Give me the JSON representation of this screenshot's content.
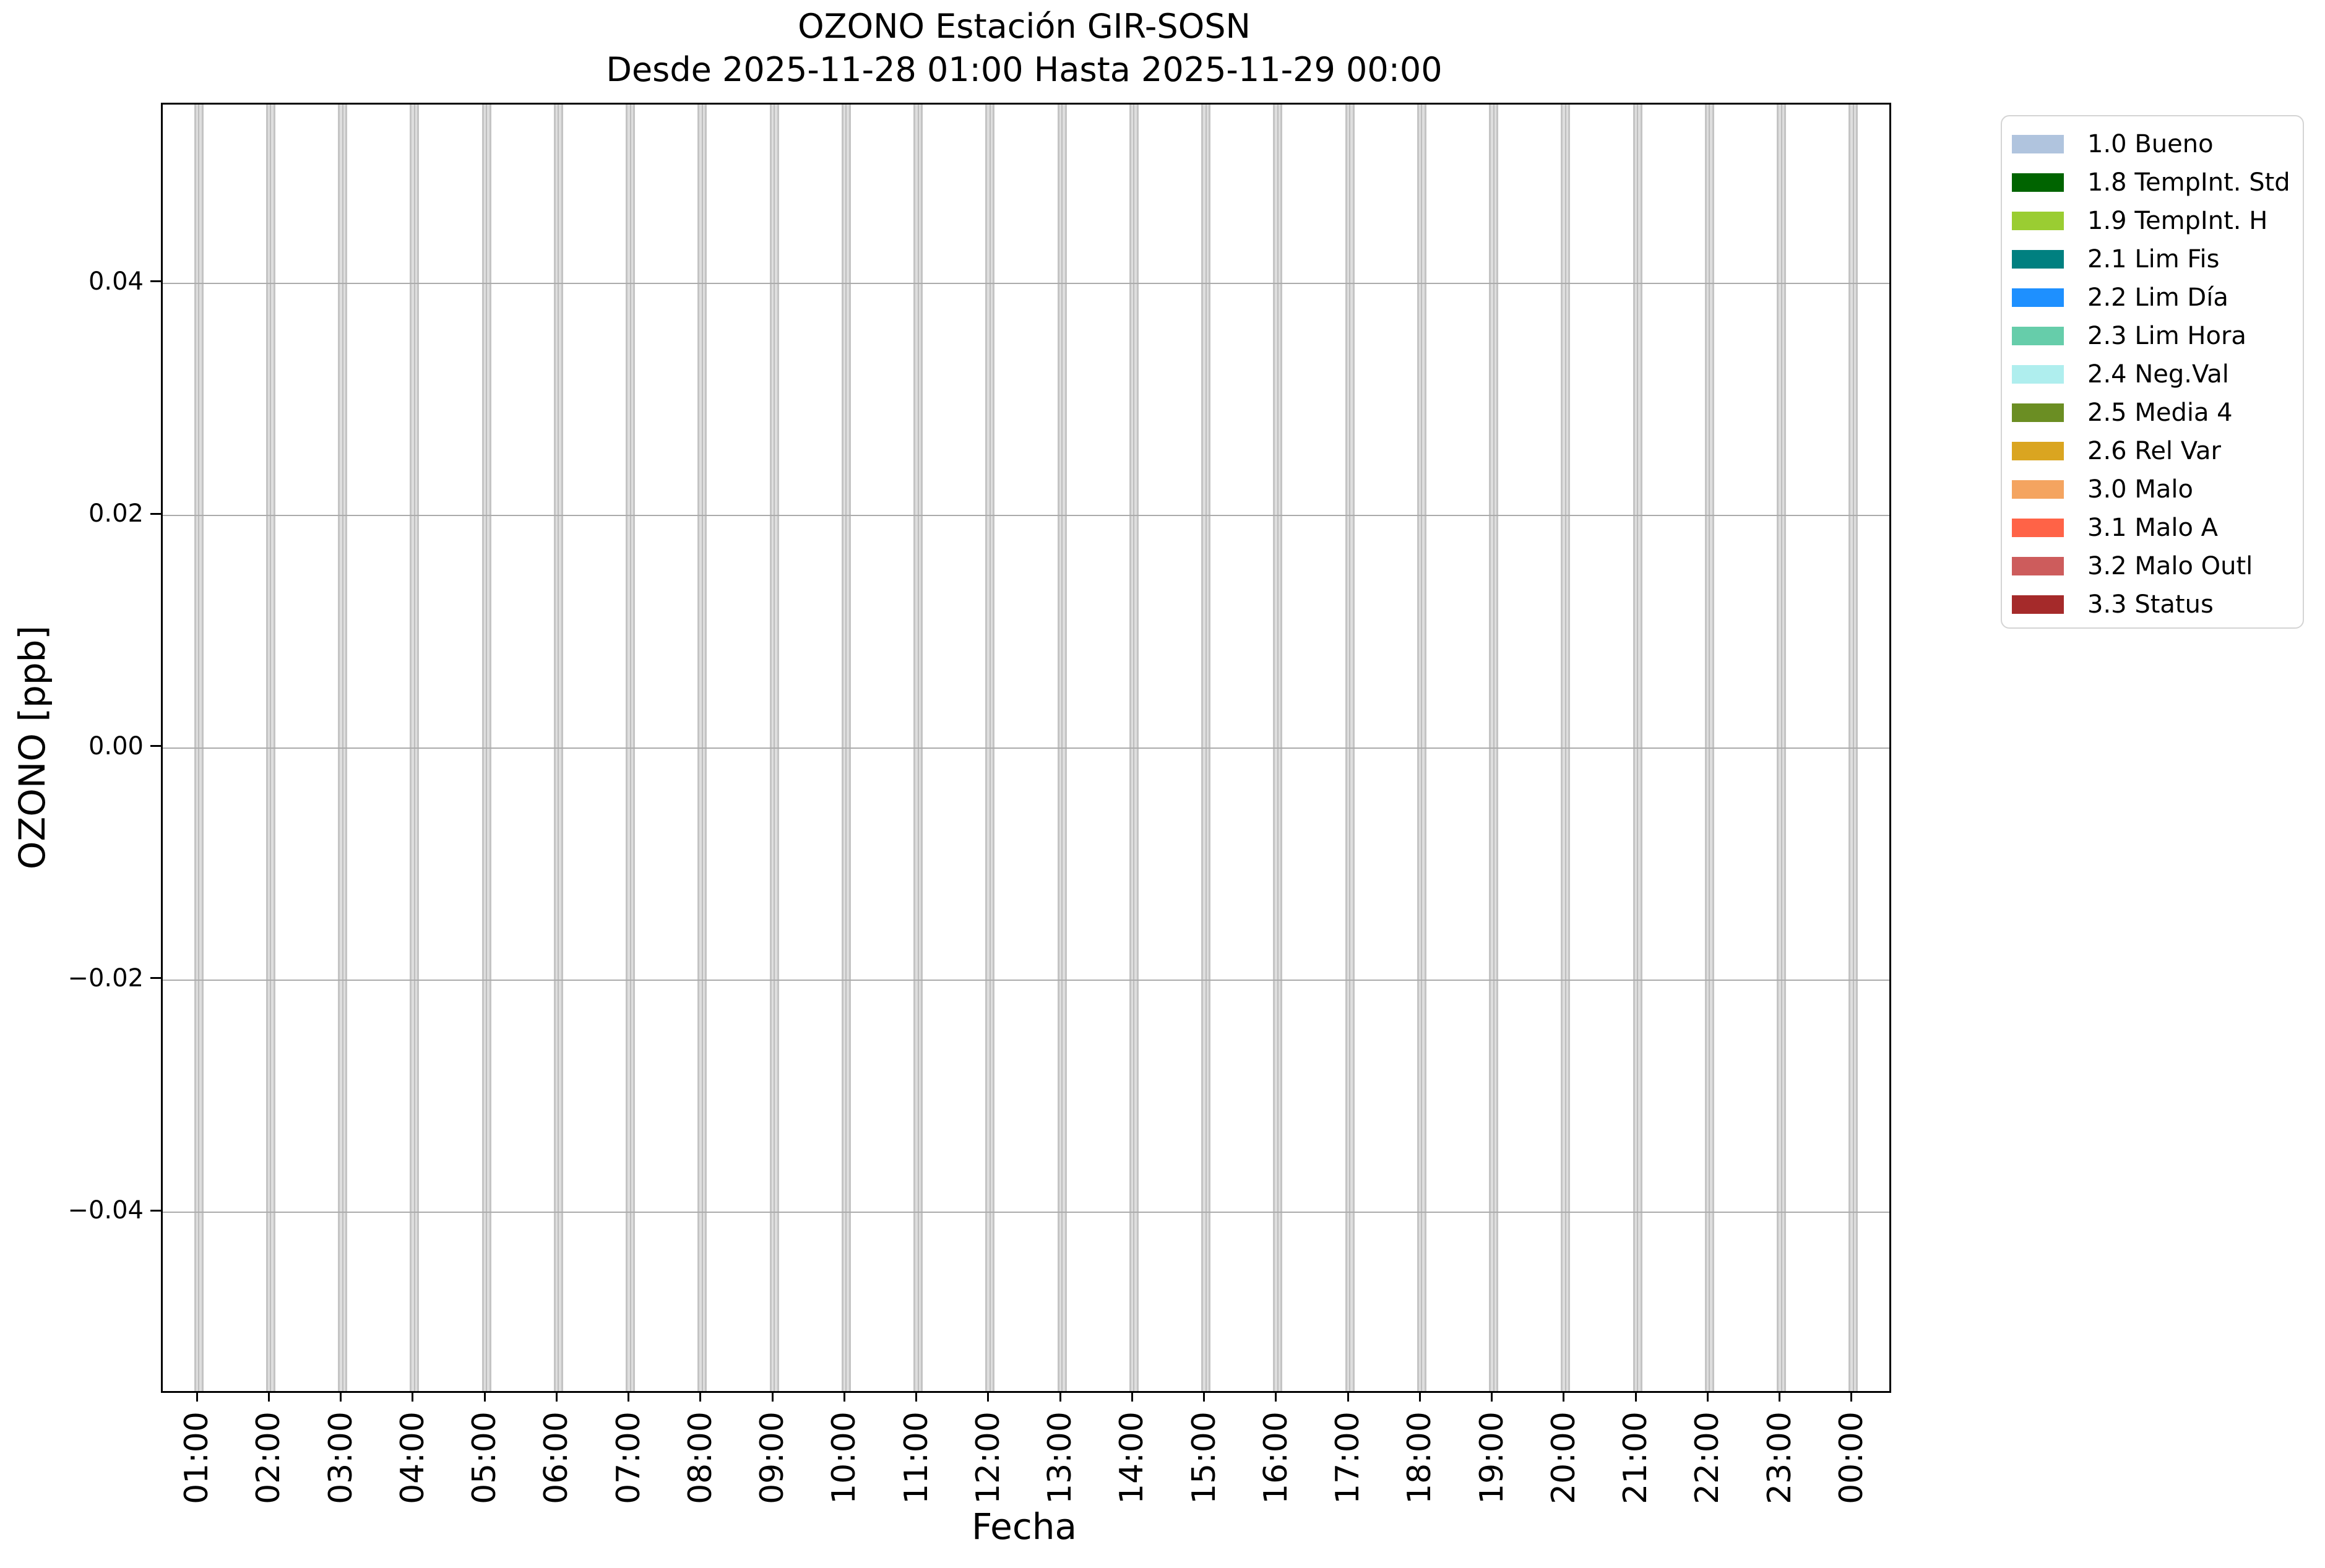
{
  "chart_data": {
    "type": "bar",
    "title": "OZONO Estación GIR-SOSN",
    "subtitle": "Desde 2025-11-28 01:00 Hasta 2025-11-29 00:00",
    "xlabel": "Fecha",
    "ylabel": "OZONO [ppb]",
    "categories": [
      "01:00",
      "02:00",
      "03:00",
      "04:00",
      "05:00",
      "06:00",
      "07:00",
      "08:00",
      "09:00",
      "10:00",
      "11:00",
      "12:00",
      "13:00",
      "14:00",
      "15:00",
      "16:00",
      "17:00",
      "18:00",
      "19:00",
      "20:00",
      "21:00",
      "22:00",
      "23:00",
      "00:00"
    ],
    "series": [],
    "no_data_columns": {
      "at_every_category": true,
      "full_height": true,
      "fill_color": "#dedede",
      "edge_color": "#c4c4c4"
    },
    "ylim": [
      -0.0554,
      0.0554
    ],
    "yticks": {
      "values": [
        0.04,
        0.02,
        0.0,
        -0.02,
        -0.04
      ],
      "labels": [
        "0.04",
        "0.02",
        "0.00",
        "−0.02",
        "−0.04"
      ]
    },
    "grid": {
      "enabled": true,
      "horizontal_color": "#ababab",
      "vertical_color": "#bdbdbd"
    },
    "axes": {
      "spine_color": "#000000",
      "background": "#ffffff"
    },
    "legend": {
      "position": "right-outside-top",
      "border_color": "#d4d4d4",
      "entries": [
        {
          "label": "1.0 Bueno",
          "color": "#b0c4de"
        },
        {
          "label": "1.8 TempInt. Std",
          "color": "#006400"
        },
        {
          "label": "1.9 TempInt. H",
          "color": "#9acd32"
        },
        {
          "label": "2.1 Lim Fis",
          "color": "#008080"
        },
        {
          "label": "2.2 Lim Día",
          "color": "#1e90ff"
        },
        {
          "label": "2.3 Lim Hora",
          "color": "#66cdaa"
        },
        {
          "label": "2.4 Neg.Val",
          "color": "#afeeee"
        },
        {
          "label": "2.5 Media 4",
          "color": "#6b8e23"
        },
        {
          "label": "2.6 Rel Var",
          "color": "#daa520"
        },
        {
          "label": "3.0 Malo",
          "color": "#f4a460"
        },
        {
          "label": "3.1 Malo A",
          "color": "#ff6347"
        },
        {
          "label": "3.2 Malo Outl",
          "color": "#cd5c5c"
        },
        {
          "label": "3.3 Status",
          "color": "#a52a2a"
        }
      ]
    }
  }
}
